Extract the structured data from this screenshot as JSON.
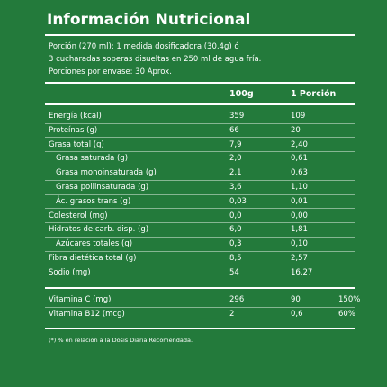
{
  "header": {
    "title": "Información Nutricional",
    "portion_lines": [
      "Porción (270 ml): 1 medida dosificadora (30,4g) ó",
      "3 cucharadas soperas disueltas en 250 ml de agua fría.",
      "Porciones por envase: 30 Aprox."
    ]
  },
  "table": {
    "columns": [
      "100g",
      "1 Porción"
    ],
    "rows": [
      [
        "Energía (kcal)",
        "359",
        "109"
      ],
      [
        "Proteínas (g)",
        "66",
        "20"
      ],
      [
        "Grasa total (g)",
        "7,9",
        "2,40"
      ],
      [
        "Grasa saturada (g)",
        "2,0",
        "0,61"
      ],
      [
        "Grasa monoinsaturada (g)",
        "2,1",
        "0,63"
      ],
      [
        "Grasa poliinsaturada (g)",
        "3,6",
        "1,10"
      ],
      [
        "Ác. grasos trans (g)",
        "0,03",
        "0,01"
      ],
      [
        "Colesterol (mg)",
        "0,0",
        "0,00"
      ],
      [
        "Hidratos de carb. disp. (g)",
        "6,0",
        "1,81"
      ],
      [
        "Azúcares totales (g)",
        "0,3",
        "0,10"
      ],
      [
        "Fibra dietética total (g)",
        "8,5",
        "2,57"
      ],
      [
        "Sodio (mg)",
        "54",
        "16,27"
      ]
    ],
    "vitamins": [
      [
        "Vitamina C (mg)",
        "296",
        "90",
        "150%"
      ],
      [
        "Vitamina B12 (mcg)",
        "2",
        "0,6",
        "60%"
      ]
    ]
  },
  "footnote": "(*) % en relación a la Dosis Diaria Recomendada."
}
